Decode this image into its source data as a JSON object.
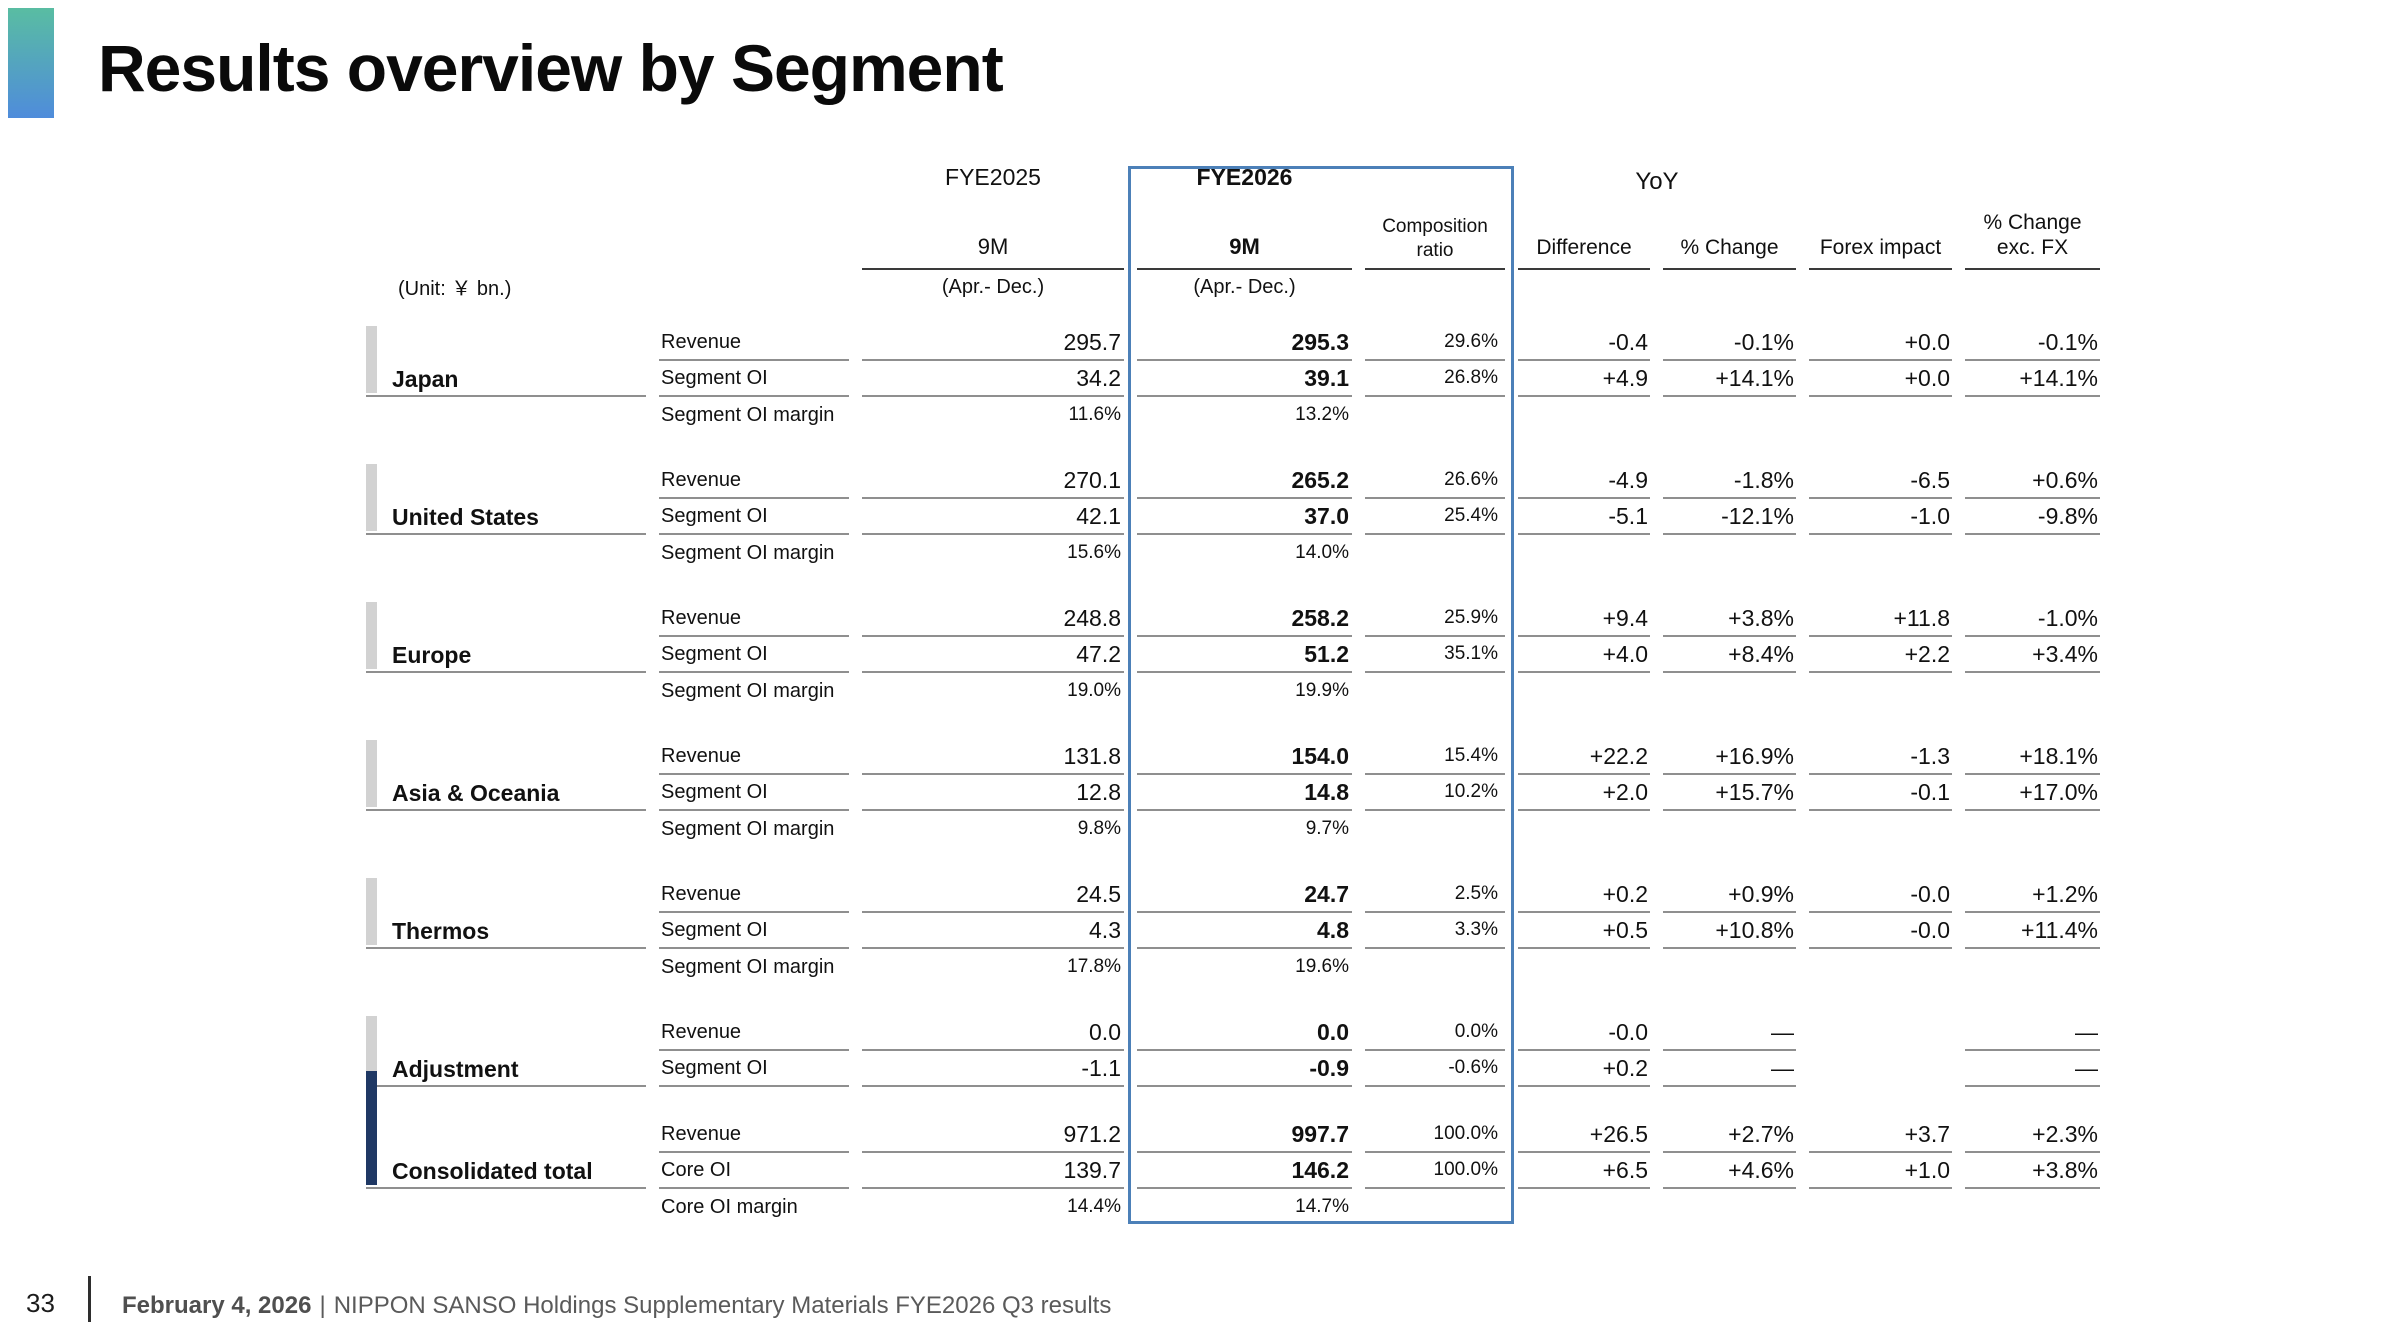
{
  "slide": {
    "title": "Results overview by Segment"
  },
  "header": {
    "unit_label": "(Unit: ￥ bn.)",
    "fye2025": {
      "title": "FYE2025",
      "period": "9M",
      "subperiod": "(Apr.- Dec.)"
    },
    "fye2026": {
      "title": "FYE2026",
      "period": "9M",
      "subperiod": "(Apr.- Dec.)",
      "composition_line1": "Composition",
      "composition_line2": "ratio"
    },
    "yoy": {
      "title": "YoY",
      "difference": "Difference",
      "pct_change": "% Change",
      "forex": "Forex impact",
      "pct_change_ex_fx_line1": "% Change",
      "pct_change_ex_fx_line2": "exc. FX"
    }
  },
  "table": {
    "segments": [
      {
        "name": "Japan",
        "highlight": false,
        "rows": [
          {
            "label": "Revenue",
            "fye2025": "295.7",
            "fye2026": "295.3",
            "comp": "29.6%",
            "diff": "-0.4",
            "chg": "-0.1%",
            "fx": "+0.0",
            "chg_ex_fx": "-0.1%"
          },
          {
            "label": "Segment OI",
            "fye2025": "34.2",
            "fye2026": "39.1",
            "comp": "26.8%",
            "diff": "+4.9",
            "chg": "+14.1%",
            "fx": "+0.0",
            "chg_ex_fx": "+14.1%"
          },
          {
            "label": "Segment OI margin",
            "fye2025": "11.6%",
            "fye2026": "13.2%"
          }
        ]
      },
      {
        "name": "United States",
        "highlight": false,
        "rows": [
          {
            "label": "Revenue",
            "fye2025": "270.1",
            "fye2026": "265.2",
            "comp": "26.6%",
            "diff": "-4.9",
            "chg": "-1.8%",
            "fx": "-6.5",
            "chg_ex_fx": "+0.6%"
          },
          {
            "label": "Segment OI",
            "fye2025": "42.1",
            "fye2026": "37.0",
            "comp": "25.4%",
            "diff": "-5.1",
            "chg": "-12.1%",
            "fx": "-1.0",
            "chg_ex_fx": "-9.8%"
          },
          {
            "label": "Segment OI margin",
            "fye2025": "15.6%",
            "fye2026": "14.0%"
          }
        ]
      },
      {
        "name": "Europe",
        "highlight": false,
        "rows": [
          {
            "label": "Revenue",
            "fye2025": "248.8",
            "fye2026": "258.2",
            "comp": "25.9%",
            "diff": "+9.4",
            "chg": "+3.8%",
            "fx": "+11.8",
            "chg_ex_fx": "-1.0%"
          },
          {
            "label": "Segment OI",
            "fye2025": "47.2",
            "fye2026": "51.2",
            "comp": "35.1%",
            "diff": "+4.0",
            "chg": "+8.4%",
            "fx": "+2.2",
            "chg_ex_fx": "+3.4%"
          },
          {
            "label": "Segment OI margin",
            "fye2025": "19.0%",
            "fye2026": "19.9%"
          }
        ]
      },
      {
        "name": "Asia & Oceania",
        "highlight": false,
        "rows": [
          {
            "label": "Revenue",
            "fye2025": "131.8",
            "fye2026": "154.0",
            "comp": "15.4%",
            "diff": "+22.2",
            "chg": "+16.9%",
            "fx": "-1.3",
            "chg_ex_fx": "+18.1%"
          },
          {
            "label": "Segment OI",
            "fye2025": "12.8",
            "fye2026": "14.8",
            "comp": "10.2%",
            "diff": "+2.0",
            "chg": "+15.7%",
            "fx": "-0.1",
            "chg_ex_fx": "+17.0%"
          },
          {
            "label": "Segment OI margin",
            "fye2025": "9.8%",
            "fye2026": "9.7%"
          }
        ]
      },
      {
        "name": "Thermos",
        "highlight": false,
        "rows": [
          {
            "label": "Revenue",
            "fye2025": "24.5",
            "fye2026": "24.7",
            "comp": "2.5%",
            "diff": "+0.2",
            "chg": "+0.9%",
            "fx": "-0.0",
            "chg_ex_fx": "+1.2%"
          },
          {
            "label": "Segment OI",
            "fye2025": "4.3",
            "fye2026": "4.8",
            "comp": "3.3%",
            "diff": "+0.5",
            "chg": "+10.8%",
            "fx": "-0.0",
            "chg_ex_fx": "+11.4%"
          },
          {
            "label": "Segment OI margin",
            "fye2025": "17.8%",
            "fye2026": "19.6%"
          }
        ]
      },
      {
        "name": "Adjustment",
        "highlight": false,
        "rows": [
          {
            "label": "Revenue",
            "fye2025": "0.0",
            "fye2026": "0.0",
            "comp": "0.0%",
            "diff": "-0.0",
            "chg": "—",
            "fx": null,
            "chg_ex_fx": "—"
          },
          {
            "label": "Segment OI",
            "fye2025": "-1.1",
            "fye2026": "-0.9",
            "comp": "-0.6%",
            "diff": "+0.2",
            "chg": "—",
            "fx": null,
            "chg_ex_fx": "—"
          }
        ]
      },
      {
        "name": "Consolidated total",
        "highlight": true,
        "rows": [
          {
            "label": "Revenue",
            "fye2025": "971.2",
            "fye2026": "997.7",
            "comp": "100.0%",
            "diff": "+26.5",
            "chg": "+2.7%",
            "fx": "+3.7",
            "chg_ex_fx": "+2.3%"
          },
          {
            "label": "Core OI",
            "fye2025": "139.7",
            "fye2026": "146.2",
            "comp": "100.0%",
            "diff": "+6.5",
            "chg": "+4.6%",
            "fx": "+1.0",
            "chg_ex_fx": "+3.8%"
          },
          {
            "label": "Core OI margin",
            "fye2025": "14.4%",
            "fye2026": "14.7%"
          }
        ]
      }
    ]
  },
  "footer": {
    "page_number": "33",
    "date": "February 4, 2026",
    "divider": "|",
    "source": "NIPPON SANSO Holdings Supplementary Materials FYE2026 Q3 results"
  }
}
